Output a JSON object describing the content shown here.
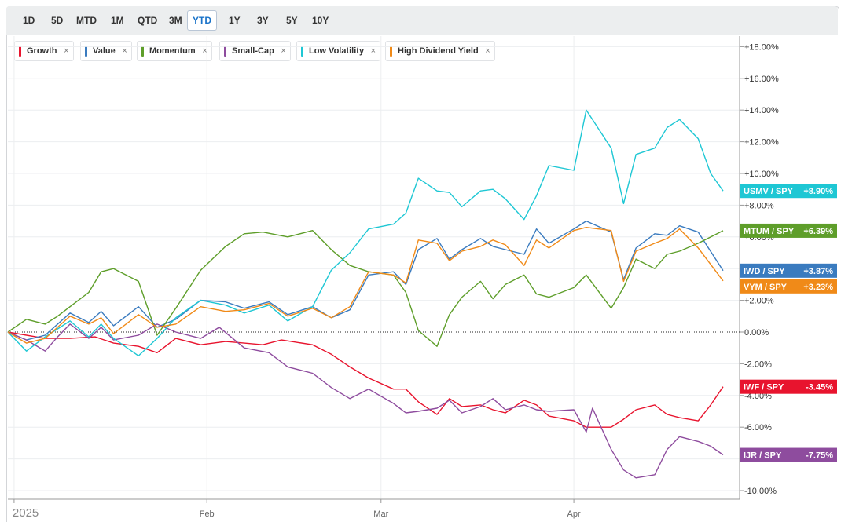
{
  "toolbar": {
    "ranges": [
      "1D",
      "5D",
      "MTD",
      "1M",
      "QTD",
      "3M",
      "YTD",
      "1Y",
      "3Y",
      "5Y",
      "10Y"
    ],
    "active": "YTD"
  },
  "legend": [
    {
      "label": "Growth",
      "color": "#e8142e",
      "close": "×"
    },
    {
      "label": "Value",
      "color": "#3a7bbf",
      "close": "×"
    },
    {
      "label": "Momentum",
      "color": "#5e9e2a",
      "close": "×"
    },
    {
      "label": "Small-Cap",
      "color": "#8e4c9e",
      "close": "×"
    },
    {
      "label": "Low Volatility",
      "color": "#1ec7d4",
      "close": "×"
    },
    {
      "label": "High Dividend Yield",
      "color": "#f08a18",
      "close": "×"
    }
  ],
  "chart_data": {
    "type": "line",
    "ylim": [
      -10.5,
      18.5
    ],
    "y_ticks": [
      "+18.00%",
      "+16.00%",
      "+14.00%",
      "+12.00%",
      "+10.00%",
      "+8.00%",
      "+6.00%",
      "+4.00%",
      "+2.00%",
      "0.00%",
      "-2.00%",
      "-4.00%",
      "-6.00%",
      "-8.00%",
      "-10.00%"
    ],
    "y_tick_values": [
      18,
      16,
      14,
      12,
      10,
      8,
      6,
      4,
      2,
      0,
      -2,
      -4,
      -6,
      -8,
      -10
    ],
    "x_range": [
      "2024-12-31",
      "2025-04-25"
    ],
    "x_ticks": [
      {
        "date": "2025-01-01",
        "label": "2025"
      },
      {
        "date": "2025-02-01",
        "label": "Feb"
      },
      {
        "date": "2025-03-01",
        "label": "Mar"
      },
      {
        "date": "2025-04-01",
        "label": "Apr"
      }
    ],
    "zero_line": true,
    "grid": true,
    "series": [
      {
        "name": "Growth",
        "end_label": "IWF / SPY",
        "end_value": "-3.45%",
        "color": "#e8142e",
        "points": [
          [
            "2024-12-31",
            0.0
          ],
          [
            "2025-01-06",
            -0.4
          ],
          [
            "2025-01-10",
            -0.4
          ],
          [
            "2025-01-14",
            -0.3
          ],
          [
            "2025-01-17",
            -0.7
          ],
          [
            "2025-01-21",
            -0.9
          ],
          [
            "2025-01-24",
            -1.3
          ],
          [
            "2025-01-27",
            -0.4
          ],
          [
            "2025-01-31",
            -0.8
          ],
          [
            "2025-02-04",
            -0.6
          ],
          [
            "2025-02-07",
            -0.7
          ],
          [
            "2025-02-10",
            -0.8
          ],
          [
            "2025-02-13",
            -0.5
          ],
          [
            "2025-02-18",
            -0.8
          ],
          [
            "2025-02-21",
            -1.4
          ],
          [
            "2025-02-24",
            -2.2
          ],
          [
            "2025-02-27",
            -2.9
          ],
          [
            "2025-03-03",
            -3.6
          ],
          [
            "2025-03-05",
            -3.6
          ],
          [
            "2025-03-07",
            -4.4
          ],
          [
            "2025-03-10",
            -5.2
          ],
          [
            "2025-03-12",
            -4.2
          ],
          [
            "2025-03-14",
            -4.7
          ],
          [
            "2025-03-17",
            -4.6
          ],
          [
            "2025-03-19",
            -4.9
          ],
          [
            "2025-03-21",
            -5.1
          ],
          [
            "2025-03-24",
            -4.3
          ],
          [
            "2025-03-26",
            -4.6
          ],
          [
            "2025-03-28",
            -5.3
          ],
          [
            "2025-04-01",
            -5.6
          ],
          [
            "2025-04-03",
            -6.0
          ],
          [
            "2025-04-07",
            -6.0
          ],
          [
            "2025-04-09",
            -5.5
          ],
          [
            "2025-04-11",
            -4.9
          ],
          [
            "2025-04-14",
            -4.6
          ],
          [
            "2025-04-16",
            -5.2
          ],
          [
            "2025-04-18",
            -5.4
          ],
          [
            "2025-04-21",
            -5.6
          ],
          [
            "2025-04-23",
            -4.6
          ],
          [
            "2025-04-25",
            -3.45
          ]
        ]
      },
      {
        "name": "Value",
        "end_label": "IWD / SPY",
        "end_value": "+3.87%",
        "color": "#3a7bbf",
        "points": [
          [
            "2024-12-31",
            0.0
          ],
          [
            "2025-01-03",
            -0.5
          ],
          [
            "2025-01-06",
            -0.2
          ],
          [
            "2025-01-10",
            1.2
          ],
          [
            "2025-01-13",
            0.6
          ],
          [
            "2025-01-15",
            1.3
          ],
          [
            "2025-01-17",
            0.4
          ],
          [
            "2025-01-21",
            1.6
          ],
          [
            "2025-01-24",
            0.3
          ],
          [
            "2025-01-27",
            0.8
          ],
          [
            "2025-01-31",
            2.0
          ],
          [
            "2025-02-04",
            1.9
          ],
          [
            "2025-02-07",
            1.5
          ],
          [
            "2025-02-11",
            1.9
          ],
          [
            "2025-02-14",
            1.1
          ],
          [
            "2025-02-18",
            1.6
          ],
          [
            "2025-02-21",
            0.9
          ],
          [
            "2025-02-24",
            1.4
          ],
          [
            "2025-02-27",
            3.6
          ],
          [
            "2025-03-03",
            3.8
          ],
          [
            "2025-03-05",
            3.0
          ],
          [
            "2025-03-07",
            5.2
          ],
          [
            "2025-03-10",
            5.9
          ],
          [
            "2025-03-12",
            4.6
          ],
          [
            "2025-03-14",
            5.2
          ],
          [
            "2025-03-17",
            5.9
          ],
          [
            "2025-03-19",
            5.4
          ],
          [
            "2025-03-21",
            5.2
          ],
          [
            "2025-03-24",
            4.9
          ],
          [
            "2025-03-26",
            6.5
          ],
          [
            "2025-03-28",
            5.6
          ],
          [
            "2025-04-01",
            6.5
          ],
          [
            "2025-04-03",
            7.0
          ],
          [
            "2025-04-07",
            6.3
          ],
          [
            "2025-04-09",
            3.3
          ],
          [
            "2025-04-11",
            5.3
          ],
          [
            "2025-04-14",
            6.2
          ],
          [
            "2025-04-16",
            6.1
          ],
          [
            "2025-04-18",
            6.7
          ],
          [
            "2025-04-21",
            6.3
          ],
          [
            "2025-04-25",
            3.87
          ]
        ]
      },
      {
        "name": "Momentum",
        "end_label": "MTUM / SPY",
        "end_value": "+6.39%",
        "color": "#5e9e2a",
        "points": [
          [
            "2024-12-31",
            0.0
          ],
          [
            "2025-01-03",
            0.8
          ],
          [
            "2025-01-06",
            0.5
          ],
          [
            "2025-01-08",
            1.0
          ],
          [
            "2025-01-10",
            1.6
          ],
          [
            "2025-01-13",
            2.5
          ],
          [
            "2025-01-15",
            3.8
          ],
          [
            "2025-01-17",
            4.0
          ],
          [
            "2025-01-21",
            3.2
          ],
          [
            "2025-01-24",
            -0.2
          ],
          [
            "2025-01-27",
            1.5
          ],
          [
            "2025-01-31",
            3.9
          ],
          [
            "2025-02-04",
            5.4
          ],
          [
            "2025-02-07",
            6.2
          ],
          [
            "2025-02-10",
            6.3
          ],
          [
            "2025-02-14",
            6.0
          ],
          [
            "2025-02-18",
            6.4
          ],
          [
            "2025-02-21",
            5.2
          ],
          [
            "2025-02-24",
            4.2
          ],
          [
            "2025-02-27",
            3.8
          ],
          [
            "2025-03-03",
            3.6
          ],
          [
            "2025-03-05",
            2.5
          ],
          [
            "2025-03-07",
            0.1
          ],
          [
            "2025-03-10",
            -0.9
          ],
          [
            "2025-03-12",
            1.1
          ],
          [
            "2025-03-14",
            2.2
          ],
          [
            "2025-03-17",
            3.2
          ],
          [
            "2025-03-19",
            2.1
          ],
          [
            "2025-03-21",
            3.0
          ],
          [
            "2025-03-24",
            3.6
          ],
          [
            "2025-03-26",
            2.4
          ],
          [
            "2025-03-28",
            2.2
          ],
          [
            "2025-04-01",
            2.8
          ],
          [
            "2025-04-03",
            3.6
          ],
          [
            "2025-04-07",
            1.5
          ],
          [
            "2025-04-09",
            2.8
          ],
          [
            "2025-04-11",
            4.6
          ],
          [
            "2025-04-14",
            4.0
          ],
          [
            "2025-04-16",
            4.9
          ],
          [
            "2025-04-18",
            5.1
          ],
          [
            "2025-04-21",
            5.6
          ],
          [
            "2025-04-25",
            6.39
          ]
        ]
      },
      {
        "name": "Small-Cap",
        "end_label": "IJR / SPY",
        "end_value": "-7.75%",
        "color": "#8e4c9e",
        "points": [
          [
            "2024-12-31",
            0.0
          ],
          [
            "2025-01-03",
            -0.5
          ],
          [
            "2025-01-06",
            -1.2
          ],
          [
            "2025-01-08",
            -0.3
          ],
          [
            "2025-01-10",
            0.5
          ],
          [
            "2025-01-13",
            -0.4
          ],
          [
            "2025-01-15",
            0.3
          ],
          [
            "2025-01-17",
            -0.5
          ],
          [
            "2025-01-21",
            -0.2
          ],
          [
            "2025-01-24",
            0.5
          ],
          [
            "2025-01-27",
            0.0
          ],
          [
            "2025-01-31",
            -0.4
          ],
          [
            "2025-02-03",
            0.3
          ],
          [
            "2025-02-07",
            -1.0
          ],
          [
            "2025-02-11",
            -1.3
          ],
          [
            "2025-02-14",
            -2.2
          ],
          [
            "2025-02-18",
            -2.6
          ],
          [
            "2025-02-21",
            -3.5
          ],
          [
            "2025-02-24",
            -4.2
          ],
          [
            "2025-02-27",
            -3.6
          ],
          [
            "2025-03-03",
            -4.5
          ],
          [
            "2025-03-05",
            -5.1
          ],
          [
            "2025-03-07",
            -5.0
          ],
          [
            "2025-03-10",
            -4.8
          ],
          [
            "2025-03-12",
            -4.3
          ],
          [
            "2025-03-14",
            -5.1
          ],
          [
            "2025-03-17",
            -4.7
          ],
          [
            "2025-03-19",
            -4.2
          ],
          [
            "2025-03-21",
            -4.9
          ],
          [
            "2025-03-24",
            -4.6
          ],
          [
            "2025-03-26",
            -4.9
          ],
          [
            "2025-03-28",
            -5.0
          ],
          [
            "2025-04-01",
            -4.9
          ],
          [
            "2025-04-03",
            -6.3
          ],
          [
            "2025-04-04",
            -4.8
          ],
          [
            "2025-04-07",
            -7.4
          ],
          [
            "2025-04-09",
            -8.7
          ],
          [
            "2025-04-11",
            -9.2
          ],
          [
            "2025-04-14",
            -9.0
          ],
          [
            "2025-04-16",
            -7.4
          ],
          [
            "2025-04-18",
            -6.6
          ],
          [
            "2025-04-21",
            -6.9
          ],
          [
            "2025-04-23",
            -7.2
          ],
          [
            "2025-04-25",
            -7.75
          ]
        ]
      },
      {
        "name": "Low Volatility",
        "end_label": "USMV / SPY",
        "end_value": "+8.90%",
        "color": "#1ec7d4",
        "points": [
          [
            "2024-12-31",
            0.0
          ],
          [
            "2025-01-03",
            -1.2
          ],
          [
            "2025-01-06",
            -0.3
          ],
          [
            "2025-01-08",
            0.2
          ],
          [
            "2025-01-10",
            0.7
          ],
          [
            "2025-01-13",
            -0.3
          ],
          [
            "2025-01-15",
            0.5
          ],
          [
            "2025-01-17",
            -0.4
          ],
          [
            "2025-01-21",
            -1.5
          ],
          [
            "2025-01-24",
            -0.4
          ],
          [
            "2025-01-27",
            0.9
          ],
          [
            "2025-01-31",
            2.0
          ],
          [
            "2025-02-04",
            1.7
          ],
          [
            "2025-02-07",
            1.2
          ],
          [
            "2025-02-11",
            1.7
          ],
          [
            "2025-02-14",
            0.7
          ],
          [
            "2025-02-18",
            1.6
          ],
          [
            "2025-02-21",
            3.9
          ],
          [
            "2025-02-24",
            5.0
          ],
          [
            "2025-02-27",
            6.5
          ],
          [
            "2025-03-03",
            6.8
          ],
          [
            "2025-03-05",
            7.5
          ],
          [
            "2025-03-07",
            9.7
          ],
          [
            "2025-03-10",
            8.9
          ],
          [
            "2025-03-12",
            8.8
          ],
          [
            "2025-03-14",
            7.9
          ],
          [
            "2025-03-17",
            8.9
          ],
          [
            "2025-03-19",
            9.0
          ],
          [
            "2025-03-21",
            8.4
          ],
          [
            "2025-03-24",
            7.1
          ],
          [
            "2025-03-26",
            8.6
          ],
          [
            "2025-03-28",
            10.5
          ],
          [
            "2025-04-01",
            10.2
          ],
          [
            "2025-04-03",
            14.0
          ],
          [
            "2025-04-04",
            13.4
          ],
          [
            "2025-04-07",
            11.6
          ],
          [
            "2025-04-09",
            8.1
          ],
          [
            "2025-04-11",
            11.2
          ],
          [
            "2025-04-14",
            11.6
          ],
          [
            "2025-04-16",
            12.9
          ],
          [
            "2025-04-18",
            13.4
          ],
          [
            "2025-04-21",
            12.2
          ],
          [
            "2025-04-23",
            10.0
          ],
          [
            "2025-04-25",
            8.9
          ]
        ]
      },
      {
        "name": "High Dividend Yield",
        "end_label": "VYM / SPY",
        "end_value": "+3.23%",
        "color": "#f08a18",
        "points": [
          [
            "2024-12-31",
            0.0
          ],
          [
            "2025-01-03",
            -0.7
          ],
          [
            "2025-01-06",
            -0.4
          ],
          [
            "2025-01-08",
            0.3
          ],
          [
            "2025-01-10",
            1.0
          ],
          [
            "2025-01-13",
            0.5
          ],
          [
            "2025-01-15",
            0.9
          ],
          [
            "2025-01-17",
            -0.1
          ],
          [
            "2025-01-21",
            1.1
          ],
          [
            "2025-01-24",
            0.3
          ],
          [
            "2025-01-27",
            0.5
          ],
          [
            "2025-01-31",
            1.6
          ],
          [
            "2025-02-04",
            1.3
          ],
          [
            "2025-02-07",
            1.4
          ],
          [
            "2025-02-11",
            1.8
          ],
          [
            "2025-02-14",
            1.0
          ],
          [
            "2025-02-18",
            1.5
          ],
          [
            "2025-02-21",
            0.9
          ],
          [
            "2025-02-24",
            1.6
          ],
          [
            "2025-02-27",
            3.8
          ],
          [
            "2025-03-03",
            3.6
          ],
          [
            "2025-03-05",
            3.1
          ],
          [
            "2025-03-07",
            5.8
          ],
          [
            "2025-03-10",
            5.6
          ],
          [
            "2025-03-12",
            4.5
          ],
          [
            "2025-03-14",
            5.1
          ],
          [
            "2025-03-17",
            5.4
          ],
          [
            "2025-03-19",
            5.8
          ],
          [
            "2025-03-21",
            5.5
          ],
          [
            "2025-03-24",
            4.2
          ],
          [
            "2025-03-26",
            5.8
          ],
          [
            "2025-03-28",
            5.3
          ],
          [
            "2025-04-01",
            6.4
          ],
          [
            "2025-04-03",
            6.6
          ],
          [
            "2025-04-07",
            6.4
          ],
          [
            "2025-04-09",
            3.2
          ],
          [
            "2025-04-11",
            5.1
          ],
          [
            "2025-04-14",
            5.6
          ],
          [
            "2025-04-16",
            5.9
          ],
          [
            "2025-04-18",
            6.5
          ],
          [
            "2025-04-21",
            5.3
          ],
          [
            "2025-04-25",
            3.23
          ]
        ]
      }
    ]
  }
}
